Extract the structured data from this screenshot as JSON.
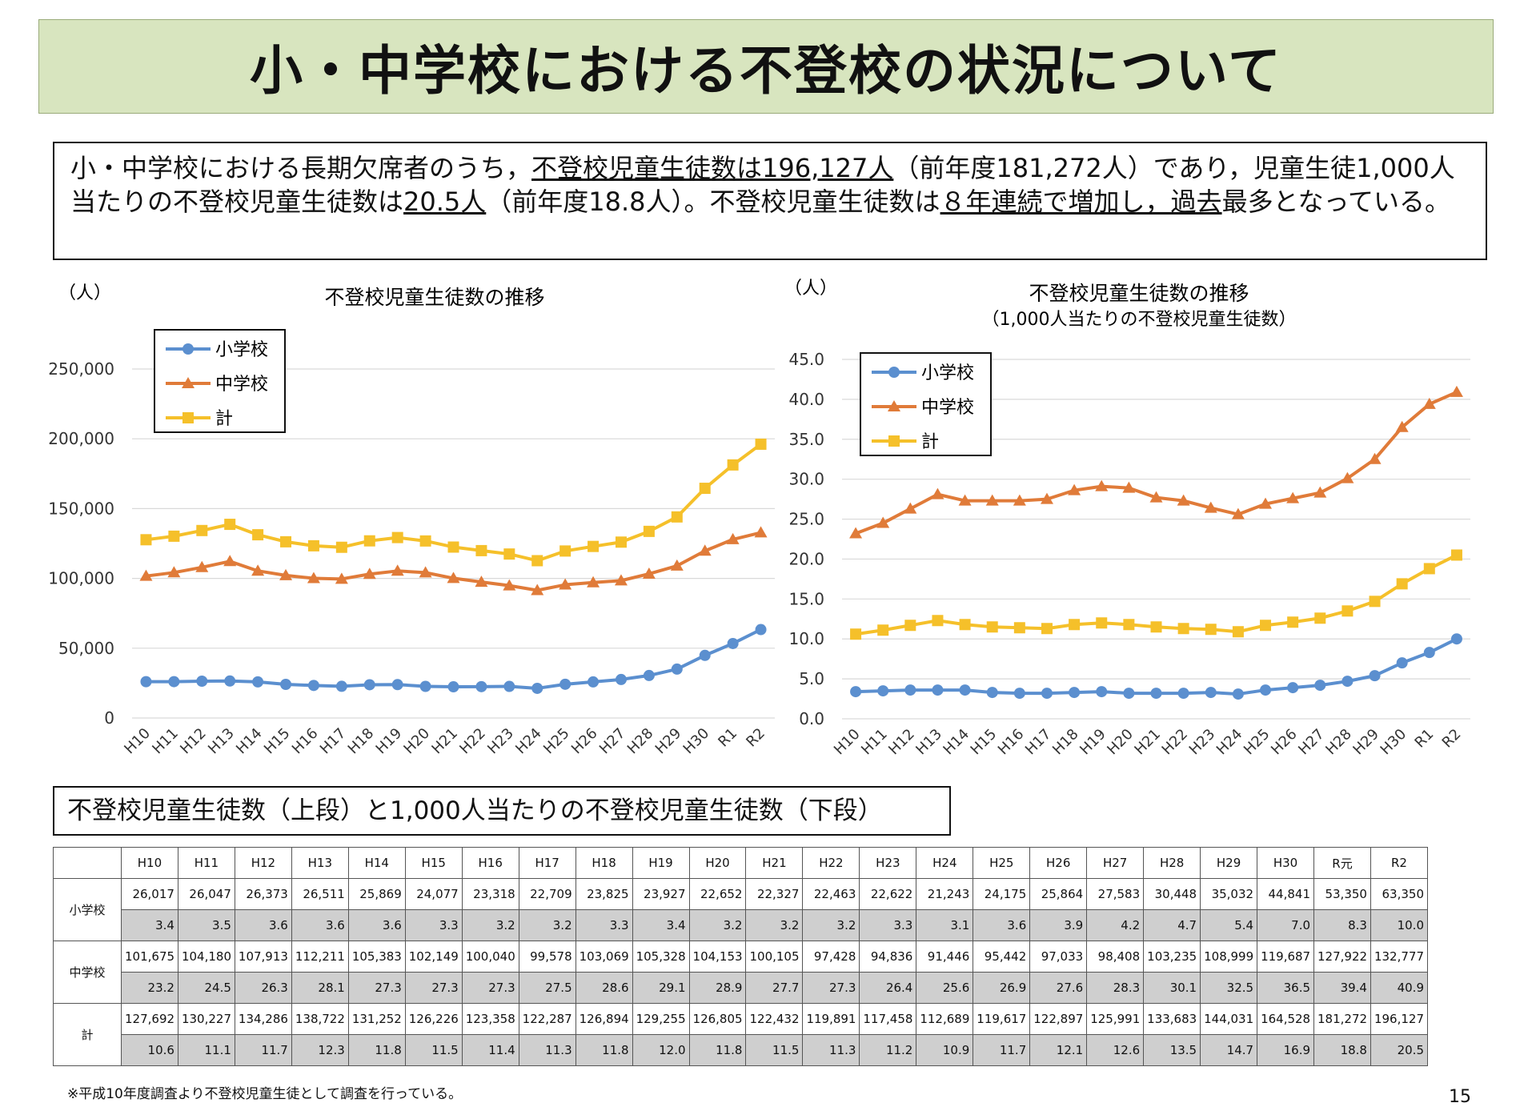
{
  "title": "小・中学校における不登校の状況について",
  "summary": {
    "p1": "小・中学校における長期欠席者のうち，",
    "p2": "不登校児童生徒数は196,127人",
    "p3": "（前年度181,272人）であり，児童生徒1,000人当たりの不登校児童生徒数は",
    "p4": "20.5人",
    "p5": "（前年度18.8人）。不登校児童生徒数は",
    "p6": "８年連続で増加し，過去",
    "p7": "最多となっている。"
  },
  "colors": {
    "elementary": "#5b8fcf",
    "junior": "#e07b39",
    "total": "#f5c02a"
  },
  "chart_data": [
    {
      "type": "line",
      "title": "不登校児童生徒数の推移",
      "subtitle": "",
      "unit_label": "（人）",
      "categories": [
        "H10",
        "H11",
        "H12",
        "H13",
        "H14",
        "H15",
        "H16",
        "H17",
        "H18",
        "H19",
        "H20",
        "H21",
        "H22",
        "H23",
        "H24",
        "H25",
        "H26",
        "H27",
        "H28",
        "H29",
        "H30",
        "R1",
        "R2"
      ],
      "ylim": [
        0,
        250000
      ],
      "yticks": [
        0,
        50000,
        100000,
        150000,
        200000,
        250000
      ],
      "ytick_labels": [
        "0",
        "50,000",
        "100,000",
        "150,000",
        "200,000",
        "250,000"
      ],
      "grid": true,
      "legend": "top-left",
      "series": [
        {
          "name": "小学校",
          "marker": "circle",
          "values": [
            26017,
            26047,
            26373,
            26511,
            25869,
            24077,
            23318,
            22709,
            23825,
            23927,
            22652,
            22327,
            22463,
            22622,
            21243,
            24175,
            25864,
            27583,
            30448,
            35032,
            44841,
            53350,
            63350
          ]
        },
        {
          "name": "中学校",
          "marker": "triangle",
          "values": [
            101675,
            104180,
            107913,
            112211,
            105383,
            102149,
            100040,
            99578,
            103069,
            105328,
            104153,
            100105,
            97428,
            94836,
            91446,
            95442,
            97033,
            98408,
            103235,
            108999,
            119687,
            127922,
            132777
          ]
        },
        {
          "name": "計",
          "marker": "square",
          "values": [
            127692,
            130227,
            134286,
            138722,
            131252,
            126226,
            123358,
            122287,
            126894,
            129255,
            126805,
            122432,
            119891,
            117458,
            112689,
            119617,
            122897,
            125991,
            133683,
            144031,
            164528,
            181272,
            196127
          ]
        }
      ]
    },
    {
      "type": "line",
      "title": "不登校児童生徒数の推移",
      "subtitle": "（1,000人当たりの不登校児童生徒数）",
      "unit_label": "（人）",
      "categories": [
        "H10",
        "H11",
        "H12",
        "H13",
        "H14",
        "H15",
        "H16",
        "H17",
        "H18",
        "H19",
        "H20",
        "H21",
        "H22",
        "H23",
        "H24",
        "H25",
        "H26",
        "H27",
        "H28",
        "H29",
        "H30",
        "R1",
        "R2"
      ],
      "ylim": [
        0,
        45
      ],
      "yticks": [
        0,
        5,
        10,
        15,
        20,
        25,
        30,
        35,
        40,
        45
      ],
      "ytick_labels": [
        "0.0",
        "5.0",
        "10.0",
        "15.0",
        "20.0",
        "25.0",
        "30.0",
        "35.0",
        "40.0",
        "45.0"
      ],
      "grid": true,
      "legend": "top-left",
      "series": [
        {
          "name": "小学校",
          "marker": "circle",
          "values": [
            3.4,
            3.5,
            3.6,
            3.6,
            3.6,
            3.3,
            3.2,
            3.2,
            3.3,
            3.4,
            3.2,
            3.2,
            3.2,
            3.3,
            3.1,
            3.6,
            3.9,
            4.2,
            4.7,
            5.4,
            7.0,
            8.3,
            10.0
          ]
        },
        {
          "name": "中学校",
          "marker": "triangle",
          "values": [
            23.2,
            24.5,
            26.3,
            28.1,
            27.3,
            27.3,
            27.3,
            27.5,
            28.6,
            29.1,
            28.9,
            27.7,
            27.3,
            26.4,
            25.6,
            26.9,
            27.6,
            28.3,
            30.1,
            32.5,
            36.5,
            39.4,
            40.9
          ]
        },
        {
          "name": "計",
          "marker": "square",
          "values": [
            10.6,
            11.1,
            11.7,
            12.3,
            11.8,
            11.5,
            11.4,
            11.3,
            11.8,
            12.0,
            11.8,
            11.5,
            11.3,
            11.2,
            10.9,
            11.7,
            12.1,
            12.6,
            13.5,
            14.7,
            16.9,
            18.8,
            20.5
          ]
        }
      ]
    }
  ],
  "table": {
    "title": "不登校児童生徒数（上段）と1,000人当たりの不登校児童生徒数（下段）",
    "headers": [
      "H10",
      "H11",
      "H12",
      "H13",
      "H14",
      "H15",
      "H16",
      "H17",
      "H18",
      "H19",
      "H20",
      "H21",
      "H22",
      "H23",
      "H24",
      "H25",
      "H26",
      "H27",
      "H28",
      "H29",
      "H30",
      "R元",
      "R2"
    ],
    "rows": [
      {
        "label": "小学校",
        "upper": [
          "26,017",
          "26,047",
          "26,373",
          "26,511",
          "25,869",
          "24,077",
          "23,318",
          "22,709",
          "23,825",
          "23,927",
          "22,652",
          "22,327",
          "22,463",
          "22,622",
          "21,243",
          "24,175",
          "25,864",
          "27,583",
          "30,448",
          "35,032",
          "44,841",
          "53,350",
          "63,350"
        ],
        "lower": [
          "3.4",
          "3.5",
          "3.6",
          "3.6",
          "3.6",
          "3.3",
          "3.2",
          "3.2",
          "3.3",
          "3.4",
          "3.2",
          "3.2",
          "3.2",
          "3.3",
          "3.1",
          "3.6",
          "3.9",
          "4.2",
          "4.7",
          "5.4",
          "7.0",
          "8.3",
          "10.0"
        ]
      },
      {
        "label": "中学校",
        "upper": [
          "101,675",
          "104,180",
          "107,913",
          "112,211",
          "105,383",
          "102,149",
          "100,040",
          "99,578",
          "103,069",
          "105,328",
          "104,153",
          "100,105",
          "97,428",
          "94,836",
          "91,446",
          "95,442",
          "97,033",
          "98,408",
          "103,235",
          "108,999",
          "119,687",
          "127,922",
          "132,777"
        ],
        "lower": [
          "23.2",
          "24.5",
          "26.3",
          "28.1",
          "27.3",
          "27.3",
          "27.3",
          "27.5",
          "28.6",
          "29.1",
          "28.9",
          "27.7",
          "27.3",
          "26.4",
          "25.6",
          "26.9",
          "27.6",
          "28.3",
          "30.1",
          "32.5",
          "36.5",
          "39.4",
          "40.9"
        ]
      },
      {
        "label": "計",
        "upper": [
          "127,692",
          "130,227",
          "134,286",
          "138,722",
          "131,252",
          "126,226",
          "123,358",
          "122,287",
          "126,894",
          "129,255",
          "126,805",
          "122,432",
          "119,891",
          "117,458",
          "112,689",
          "119,617",
          "122,897",
          "125,991",
          "133,683",
          "144,031",
          "164,528",
          "181,272",
          "196,127"
        ],
        "lower": [
          "10.6",
          "11.1",
          "11.7",
          "12.3",
          "11.8",
          "11.5",
          "11.4",
          "11.3",
          "11.8",
          "12.0",
          "11.8",
          "11.5",
          "11.3",
          "11.2",
          "10.9",
          "11.7",
          "12.1",
          "12.6",
          "13.5",
          "14.7",
          "16.9",
          "18.8",
          "20.5"
        ]
      }
    ]
  },
  "footnote": "※平成10年度調査より不登校児童生徒として調査を行っている。",
  "page_number": "15"
}
